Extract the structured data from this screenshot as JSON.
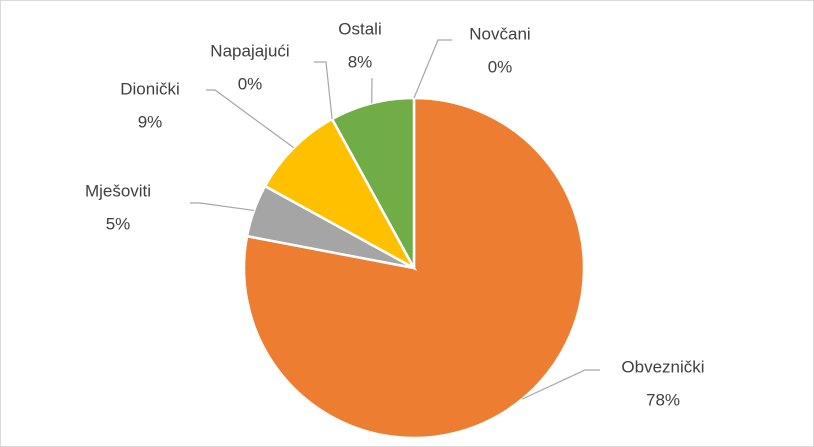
{
  "chart_data": {
    "type": "pie",
    "categories": [
      "Novčani",
      "Obveznički",
      "Mješoviti",
      "Dionički",
      "Napajajući",
      "Ostali"
    ],
    "values": [
      0,
      78,
      5,
      9,
      0,
      8
    ],
    "value_labels": [
      "0%",
      "78%",
      "5%",
      "9%",
      "0%",
      "8%"
    ],
    "colors": [
      "#4472c4",
      "#ed7d31",
      "#a5a5a5",
      "#ffc000",
      "#5b9bd5",
      "#70ad47"
    ]
  }
}
